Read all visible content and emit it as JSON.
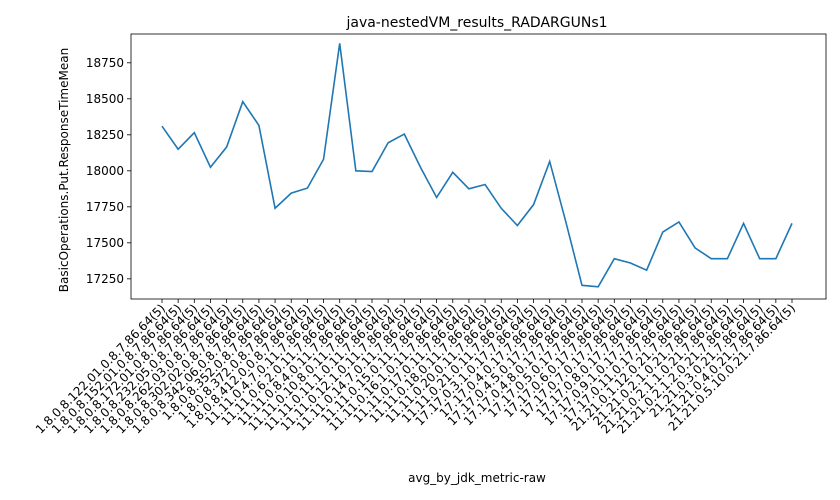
{
  "chart_data": {
    "type": "line",
    "title": "java-nestedVM_results_RADARGUNs1",
    "xlabel": "avg_by_jdk_metric-raw",
    "ylabel": "BasicOperations.Put.ResponseTimeMean",
    "ylim": [
      17110,
      18950
    ],
    "yticks": [
      17250,
      17500,
      17750,
      18000,
      18250,
      18500,
      18750
    ],
    "grid": false,
    "line_color": "#1f77b4",
    "categories": [
      "1.8.0.8.122.01.0.8.7.86.64(5)",
      "1.8.0.8.152.01.0.8.7.86.64(5)",
      "1.8.0.8.172.01.0.8.7.86.64(5)",
      "1.8.0.8.232.05.0.8.7.86.64(5)",
      "1.8.0.8.262.03.0.8.7.86.64(5)",
      "1.8.0.8.302.02.0.8.7.86.64(5)",
      "1.8.0.8.342.06.0.8.7.86.64(5)",
      "1.8.0.8.352.0.8.7.86.64(5)",
      "1.8.0.8.372.0.8.7.86.64(5)",
      "1.8.0.8.412.0.0.8.7.86.64(5)",
      "11.11.0.4.7.0.11.7.86.64(5)",
      "11.11.0.6.2.0.11.7.86.64(5)",
      "11.11.0.8.4.0.11.7.86.64(5)",
      "11.11.0.10.8.0.11.7.86.64(5)",
      "11.11.0.11.1.0.11.7.86.64(5)",
      "11.11.0.12.1.0.11.7.86.64(5)",
      "11.11.0.14.7.0.11.7.86.64(5)",
      "11.11.0.15.0.11.7.86.64(5)",
      "11.11.0.16.1.0.11.7.86.64(5)",
      "11.11.0.17.0.11.7.86.64(5)",
      "11.11.0.18.0.11.7.86.64(5)",
      "11.11.0.20.0.11.7.86.64(5)",
      "11.11.0.21.0.11.7.86.64(5)",
      "17.17.0.3.1.0.17.7.86.64(5)",
      "17.17.0.4.0.17.7.86.64(5)",
      "17.17.0.4.5.0.17.7.86.64(5)",
      "17.17.0.4.8.0.17.7.86.64(5)",
      "17.17.0.5.0.17.7.86.64(5)",
      "17.17.0.6.0.17.7.86.64(5)",
      "17.17.0.7.0.17.7.86.64(5)",
      "17.17.0.8.0.17.7.86.64(5)",
      "17.17.0.9.1.0.17.7.86.64(5)",
      "17.17.0.11.0.17.7.86.64(5)",
      "21.21.0.1.12.0.21.7.86.64(5)",
      "21.21.0.2.1.0.21.7.86.64(5)",
      "21.21.0.2.1.1.0.21.7.86.64(5)",
      "21.21.0.2.1.2.0.21.7.86.64(5)",
      "21.21.0.3.0.21.7.86.64(5)",
      "21.21.0.4.0.21.7.86.64(5)",
      "21.21.0.5.10.0.21.7.86.64(5)"
    ],
    "values": [
      18310,
      18150,
      18265,
      18025,
      18165,
      18480,
      18315,
      17740,
      17845,
      17880,
      18080,
      18885,
      18000,
      17995,
      18195,
      18255,
      18025,
      17815,
      17990,
      17875,
      17905,
      17740,
      17620,
      17765,
      18065,
      17645,
      17205,
      17195,
      17390,
      17360,
      17310,
      17575,
      17645,
      17465,
      17390,
      17390,
      17635,
      17390,
      17390,
      17635
    ]
  }
}
